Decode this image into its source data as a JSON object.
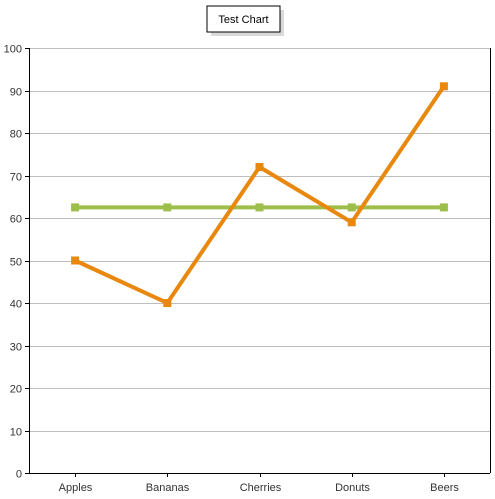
{
  "chart_data": {
    "type": "line",
    "title": "Test Chart",
    "xlabel": "",
    "ylabel": "",
    "categories": [
      "Apples",
      "Bananas",
      "Cherries",
      "Donuts",
      "Beers"
    ],
    "ylim": [
      0,
      100
    ],
    "yticks": [
      0,
      10,
      20,
      30,
      40,
      50,
      60,
      70,
      80,
      90,
      100
    ],
    "grid": true,
    "series": [
      {
        "color": "#E8880F",
        "marker": "square",
        "values": [
          50,
          40,
          72,
          59,
          91
        ]
      },
      {
        "color": "#9DBE4A",
        "marker": "square",
        "values": [
          62.5,
          62.5,
          62.5,
          62.5,
          62.5
        ]
      }
    ]
  }
}
